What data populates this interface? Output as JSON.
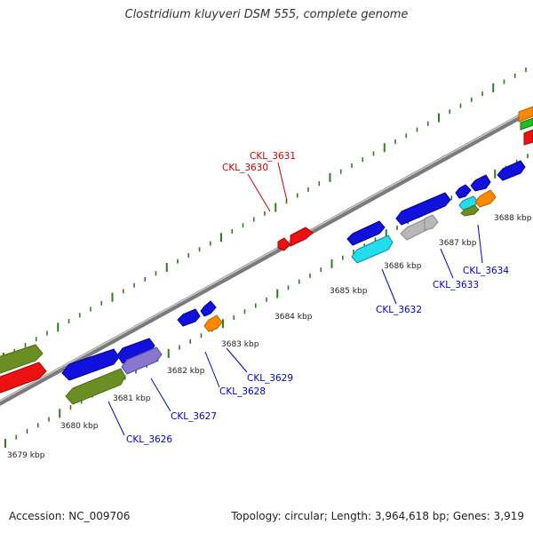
{
  "title": "Clostridium kluyveri DSM 555, complete genome",
  "footer": {
    "accession": "Accession: NC_009706",
    "summary": "Topology: circular; Length: 3,964,618 bp; Genes: 3,919"
  },
  "kbp_labels": [
    {
      "text": "3679 kbp"
    },
    {
      "text": "3680 kbp"
    },
    {
      "text": "3681 kbp"
    },
    {
      "text": "3682 kbp"
    },
    {
      "text": "3683 kbp"
    },
    {
      "text": "3684 kbp"
    },
    {
      "text": "3685 kbp"
    },
    {
      "text": "3686 kbp"
    },
    {
      "text": "3687 kbp"
    },
    {
      "text": "3688 kbp"
    }
  ],
  "gene_labels": [
    {
      "text": "CKL_3631",
      "strand": "forward"
    },
    {
      "text": "CKL_3630",
      "strand": "forward"
    },
    {
      "text": "CKL_3632",
      "strand": "reverse"
    },
    {
      "text": "CKL_3633",
      "strand": "reverse"
    },
    {
      "text": "CKL_3634",
      "strand": "reverse"
    },
    {
      "text": "CKL_3629",
      "strand": "reverse"
    },
    {
      "text": "CKL_3628",
      "strand": "reverse"
    },
    {
      "text": "CKL_3627",
      "strand": "reverse"
    },
    {
      "text": "CKL_3626",
      "strand": "reverse"
    }
  ],
  "colors": {
    "forward_label": "#cc0000",
    "reverse_label": "#0000cc",
    "backbone": "#8a8a8a",
    "ticks": "#2e7d1e",
    "red": "#ee1111",
    "blue": "#1111dd",
    "cyan": "#22ddee",
    "gray": "#b8b8b8",
    "olive": "#6b8e23",
    "purple": "#8877cc",
    "orange": "#ff8800",
    "green": "#22bb22"
  }
}
